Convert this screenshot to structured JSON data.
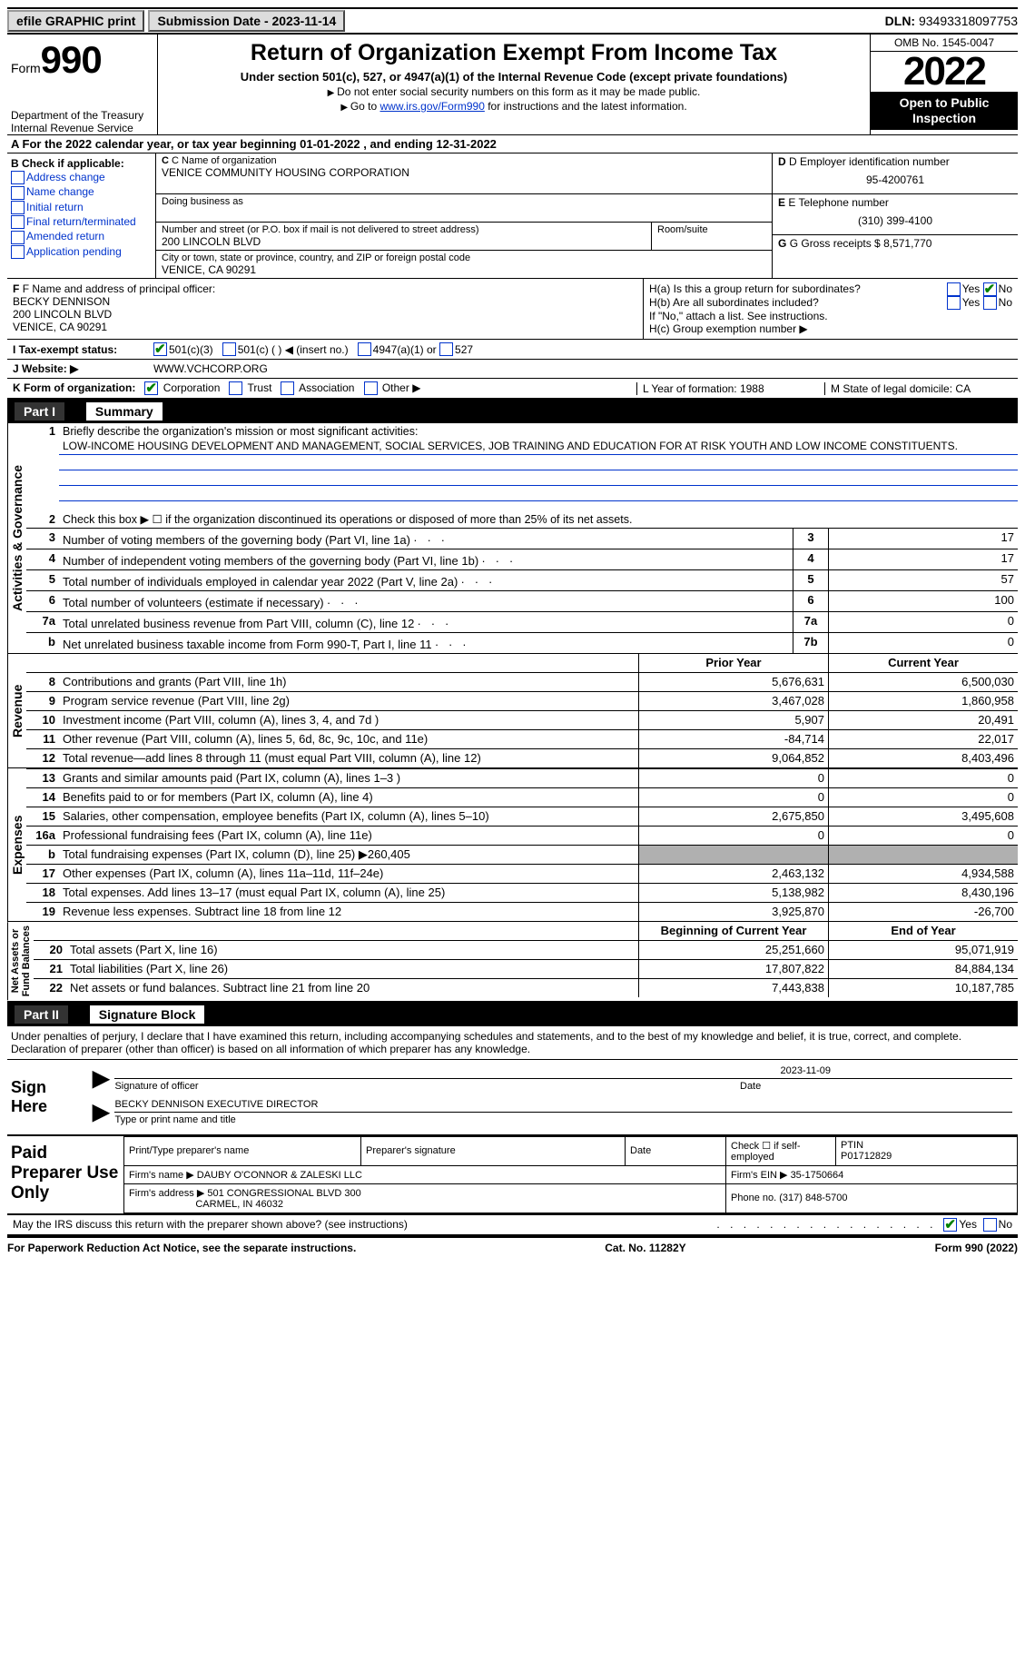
{
  "topbar": {
    "efile": "efile GRAPHIC print",
    "submission": "Submission Date - 2023-11-14",
    "dln_label": "DLN:",
    "dln": "93493318097753"
  },
  "header": {
    "form_word": "Form",
    "form_num": "990",
    "dept": "Department of the Treasury",
    "irs": "Internal Revenue Service",
    "title": "Return of Organization Exempt From Income Tax",
    "subtitle": "Under section 501(c), 527, or 4947(a)(1) of the Internal Revenue Code (except private foundations)",
    "note1": "Do not enter social security numbers on this form as it may be made public.",
    "note2_pre": "Go to ",
    "note2_link": "www.irs.gov/Form990",
    "note2_post": " for instructions and the latest information.",
    "omb": "OMB No. 1545-0047",
    "year": "2022",
    "open": "Open to Public Inspection"
  },
  "row_a": "A For the 2022 calendar year, or tax year beginning 01-01-2022    , and ending 12-31-2022",
  "box_b": {
    "title": "B Check if applicable:",
    "opts": [
      "Address change",
      "Name change",
      "Initial return",
      "Final return/terminated",
      "Amended return",
      "Application pending"
    ]
  },
  "box_c": {
    "label_name": "C Name of organization",
    "name": "VENICE COMMUNITY HOUSING CORPORATION",
    "dba_label": "Doing business as",
    "addr_label": "Number and street (or P.O. box if mail is not delivered to street address)",
    "room_label": "Room/suite",
    "addr": "200 LINCOLN BLVD",
    "city_label": "City or town, state or province, country, and ZIP or foreign postal code",
    "city": "VENICE, CA  90291"
  },
  "box_d": {
    "label": "D Employer identification number",
    "val": "95-4200761"
  },
  "box_e": {
    "label": "E Telephone number",
    "val": "(310) 399-4100"
  },
  "box_g": {
    "label": "G Gross receipts $",
    "val": "8,571,770"
  },
  "box_f": {
    "label": "F Name and address of principal officer:",
    "name": "BECKY DENNISON",
    "addr1": "200 LINCOLN BLVD",
    "addr2": "VENICE, CA  90291"
  },
  "box_h": {
    "a": "H(a) Is this a group return for subordinates?",
    "b": "H(b) Are all subordinates included?",
    "note": "If \"No,\" attach a list. See instructions.",
    "c": "H(c) Group exemption number ▶",
    "yes": "Yes",
    "no": "No"
  },
  "row_i": {
    "label": "I  Tax-exempt status:",
    "o1": "501(c)(3)",
    "o2": "501(c) (  ) ◀ (insert no.)",
    "o3": "4947(a)(1) or",
    "o4": "527"
  },
  "row_j": {
    "label": "J  Website: ▶",
    "val": "WWW.VCHCORP.ORG"
  },
  "row_k": {
    "label": "K Form of organization:",
    "opts": [
      "Corporation",
      "Trust",
      "Association",
      "Other ▶"
    ],
    "l": "L Year of formation: 1988",
    "m": "M State of legal domicile: CA"
  },
  "part1": {
    "label": "Part I",
    "title": "Summary"
  },
  "mission": {
    "q": "Briefly describe the organization's mission or most significant activities:",
    "text": "LOW-INCOME HOUSING DEVELOPMENT AND MANAGEMENT, SOCIAL SERVICES, JOB TRAINING AND EDUCATION FOR AT RISK YOUTH AND LOW INCOME CONSTITUENTS."
  },
  "line2": "Check this box ▶ ☐ if the organization discontinued its operations or disposed of more than 25% of its net assets.",
  "gov_lines": [
    {
      "n": "3",
      "d": "Number of voting members of the governing body (Part VI, line 1a)",
      "b": "3",
      "v": "17"
    },
    {
      "n": "4",
      "d": "Number of independent voting members of the governing body (Part VI, line 1b)",
      "b": "4",
      "v": "17"
    },
    {
      "n": "5",
      "d": "Total number of individuals employed in calendar year 2022 (Part V, line 2a)",
      "b": "5",
      "v": "57"
    },
    {
      "n": "6",
      "d": "Total number of volunteers (estimate if necessary)",
      "b": "6",
      "v": "100"
    },
    {
      "n": "7a",
      "d": "Total unrelated business revenue from Part VIII, column (C), line 12",
      "b": "7a",
      "v": "0"
    },
    {
      "n": "b",
      "d": "Net unrelated business taxable income from Form 990-T, Part I, line 11",
      "b": "7b",
      "v": "0"
    }
  ],
  "col_headers": {
    "prior": "Prior Year",
    "current": "Current Year"
  },
  "revenue": [
    {
      "n": "8",
      "d": "Contributions and grants (Part VIII, line 1h)",
      "p": "5,676,631",
      "c": "6,500,030"
    },
    {
      "n": "9",
      "d": "Program service revenue (Part VIII, line 2g)",
      "p": "3,467,028",
      "c": "1,860,958"
    },
    {
      "n": "10",
      "d": "Investment income (Part VIII, column (A), lines 3, 4, and 7d )",
      "p": "5,907",
      "c": "20,491"
    },
    {
      "n": "11",
      "d": "Other revenue (Part VIII, column (A), lines 5, 6d, 8c, 9c, 10c, and 11e)",
      "p": "-84,714",
      "c": "22,017"
    },
    {
      "n": "12",
      "d": "Total revenue—add lines 8 through 11 (must equal Part VIII, column (A), line 12)",
      "p": "9,064,852",
      "c": "8,403,496"
    }
  ],
  "expenses": [
    {
      "n": "13",
      "d": "Grants and similar amounts paid (Part IX, column (A), lines 1–3 )",
      "p": "0",
      "c": "0"
    },
    {
      "n": "14",
      "d": "Benefits paid to or for members (Part IX, column (A), line 4)",
      "p": "0",
      "c": "0"
    },
    {
      "n": "15",
      "d": "Salaries, other compensation, employee benefits (Part IX, column (A), lines 5–10)",
      "p": "2,675,850",
      "c": "3,495,608"
    },
    {
      "n": "16a",
      "d": "Professional fundraising fees (Part IX, column (A), line 11e)",
      "p": "0",
      "c": "0"
    },
    {
      "n": "b",
      "d": "Total fundraising expenses (Part IX, column (D), line 25) ▶260,405",
      "p": "__shade__",
      "c": "__shade__"
    },
    {
      "n": "17",
      "d": "Other expenses (Part IX, column (A), lines 11a–11d, 11f–24e)",
      "p": "2,463,132",
      "c": "4,934,588"
    },
    {
      "n": "18",
      "d": "Total expenses. Add lines 13–17 (must equal Part IX, column (A), line 25)",
      "p": "5,138,982",
      "c": "8,430,196"
    },
    {
      "n": "19",
      "d": "Revenue less expenses. Subtract line 18 from line 12",
      "p": "3,925,870",
      "c": "-26,700"
    }
  ],
  "net_headers": {
    "begin": "Beginning of Current Year",
    "end": "End of Year"
  },
  "netassets": [
    {
      "n": "20",
      "d": "Total assets (Part X, line 16)",
      "p": "25,251,660",
      "c": "95,071,919"
    },
    {
      "n": "21",
      "d": "Total liabilities (Part X, line 26)",
      "p": "17,807,822",
      "c": "84,884,134"
    },
    {
      "n": "22",
      "d": "Net assets or fund balances. Subtract line 21 from line 20",
      "p": "7,443,838",
      "c": "10,187,785"
    }
  ],
  "part2": {
    "label": "Part II",
    "title": "Signature Block"
  },
  "declaration": "Under penalties of perjury, I declare that I have examined this return, including accompanying schedules and statements, and to the best of my knowledge and belief, it is true, correct, and complete. Declaration of preparer (other than officer) is based on all information of which preparer has any knowledge.",
  "sign": {
    "here": "Sign Here",
    "sig_officer": "Signature of officer",
    "date": "Date",
    "date_val": "2023-11-09",
    "name": "BECKY DENNISON EXECUTIVE DIRECTOR",
    "name_label": "Type or print name and title"
  },
  "preparer": {
    "title": "Paid Preparer Use Only",
    "h1": "Print/Type preparer's name",
    "h2": "Preparer's signature",
    "h3": "Date",
    "h4_pre": "Check ☐ if self-employed",
    "h5": "PTIN",
    "ptin": "P01712829",
    "firm_label": "Firm's name  ▶",
    "firm": "DAUBY O'CONNOR & ZALESKI LLC",
    "ein_label": "Firm's EIN ▶",
    "ein": "35-1750664",
    "addr_label": "Firm's address ▶",
    "addr1": "501 CONGRESSIONAL BLVD 300",
    "addr2": "CARMEL, IN  46032",
    "phone_label": "Phone no.",
    "phone": "(317) 848-5700"
  },
  "discuss": "May the IRS discuss this return with the preparer shown above? (see instructions)",
  "footer": {
    "left": "For Paperwork Reduction Act Notice, see the separate instructions.",
    "mid": "Cat. No. 11282Y",
    "right": "Form 990 (2022)"
  },
  "colors": {
    "link": "#0033cc",
    "check": "#008000"
  }
}
